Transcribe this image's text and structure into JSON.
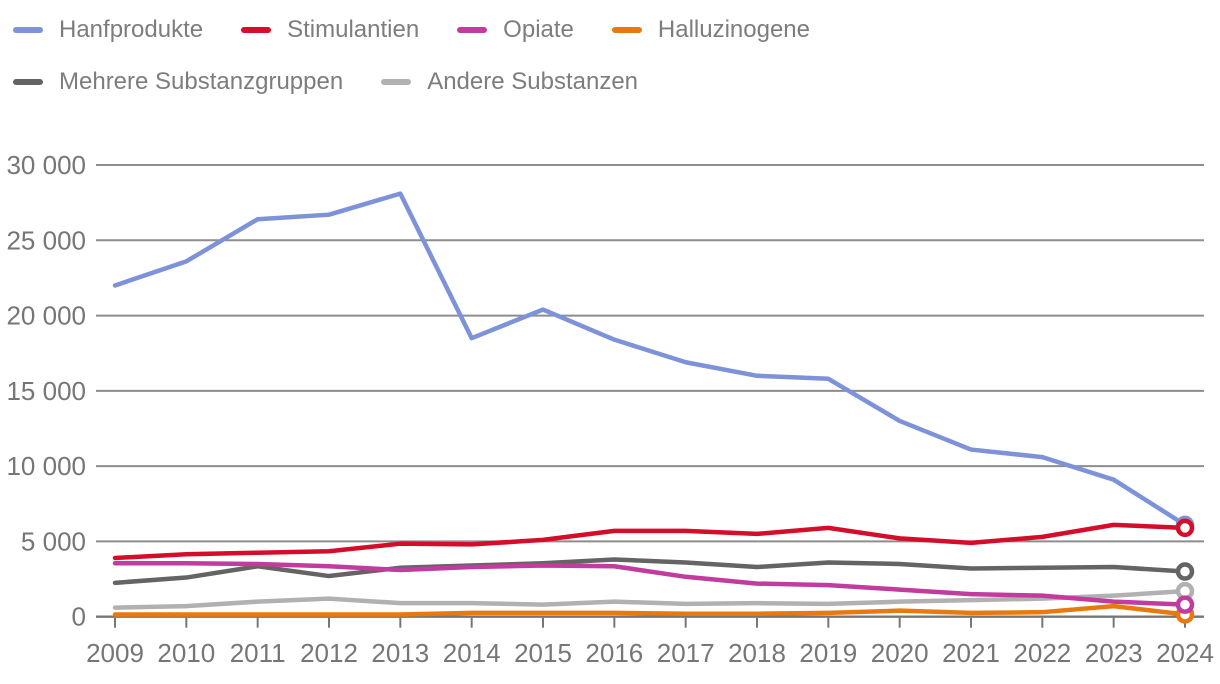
{
  "chart_data": {
    "type": "line",
    "x": [
      "2009",
      "2010",
      "2011",
      "2012",
      "2013",
      "2014",
      "2015",
      "2016",
      "2017",
      "2018",
      "2019",
      "2020",
      "2021",
      "2022",
      "2023",
      "2024"
    ],
    "ylim": [
      0,
      30000
    ],
    "grid": true,
    "legend_position": "top-left",
    "end_marker": "ring",
    "yticks": [
      {
        "value": 0,
        "label": "0"
      },
      {
        "value": 5000,
        "label": "5 000"
      },
      {
        "value": 10000,
        "label": "10 000"
      },
      {
        "value": 15000,
        "label": "15 000"
      },
      {
        "value": 20000,
        "label": "20 000"
      },
      {
        "value": 25000,
        "label": "25 000"
      },
      {
        "value": 30000,
        "label": "30 000"
      }
    ],
    "series": [
      {
        "name": "Hanfprodukte",
        "color": "#7d92d8",
        "values": [
          22000,
          23600,
          26400,
          26700,
          28100,
          18500,
          20400,
          18400,
          16900,
          16000,
          15800,
          13000,
          11100,
          10600,
          9100,
          6100
        ]
      },
      {
        "name": "Stimulantien",
        "color": "#d50c2a",
        "values": [
          3900,
          4150,
          4250,
          4350,
          4850,
          4800,
          5100,
          5700,
          5700,
          5500,
          5900,
          5200,
          4900,
          5300,
          6100,
          5900
        ]
      },
      {
        "name": "Opiate",
        "color": "#c23b9e",
        "values": [
          3550,
          3550,
          3500,
          3350,
          3100,
          3300,
          3400,
          3350,
          2650,
          2200,
          2100,
          1800,
          1500,
          1400,
          1000,
          800
        ]
      },
      {
        "name": "Halluzinogene",
        "color": "#e8790f",
        "values": [
          150,
          150,
          150,
          150,
          150,
          250,
          250,
          250,
          200,
          200,
          250,
          400,
          250,
          300,
          700,
          150
        ]
      },
      {
        "name": "Mehrere Substanzgruppen",
        "color": "#646464",
        "values": [
          2250,
          2600,
          3350,
          2700,
          3250,
          3400,
          3550,
          3800,
          3600,
          3300,
          3600,
          3500,
          3200,
          3250,
          3300,
          3000
        ]
      },
      {
        "name": "Andere Substanzen",
        "color": "#b1b1b1",
        "values": [
          600,
          700,
          1000,
          1200,
          900,
          900,
          800,
          1000,
          850,
          900,
          850,
          1000,
          1100,
          1200,
          1400,
          1700
        ]
      }
    ],
    "legend_rows": [
      [
        "Hanfprodukte",
        "Stimulantien",
        "Opiate",
        "Halluzinogene"
      ],
      [
        "Mehrere Substanzgruppen",
        "Andere Substanzen"
      ]
    ],
    "draw_order": [
      "Hanfprodukte",
      "Andere Substanzen",
      "Mehrere Substanzgruppen",
      "Halluzinogene",
      "Opiate",
      "Stimulantien"
    ],
    "colors": {
      "gridline": "#8d8d8d",
      "axis": "#767676",
      "axis_text": "#767676",
      "legend_text": "#7d7d7d",
      "background": "#ffffff"
    }
  }
}
